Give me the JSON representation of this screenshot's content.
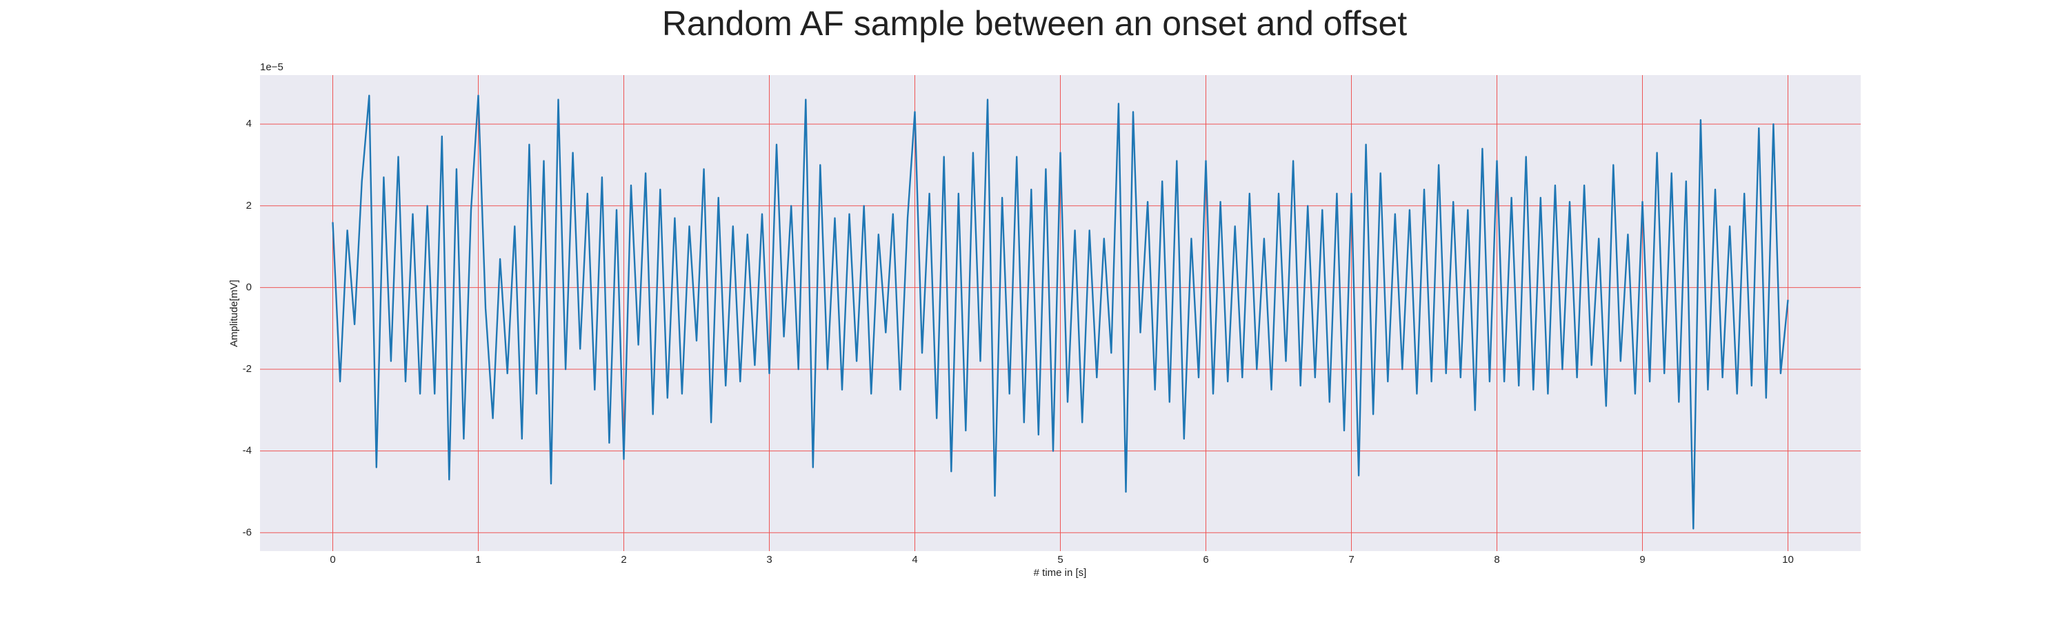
{
  "chart_data": {
    "type": "line",
    "title": "Random AF sample between an onset and offset",
    "xlabel": "# time in [s]",
    "ylabel": "Amplitude[mV]",
    "offset_text": "1e−5",
    "color": "#1f77b4",
    "background": "#eaeaf2",
    "grid": true,
    "grid_color": "#ee5555",
    "xlim": [
      -0.5,
      10.5
    ],
    "ylim": [
      -6.45,
      5.2
    ],
    "xticks": [
      0,
      1,
      2,
      3,
      4,
      5,
      6,
      7,
      8,
      9,
      10
    ],
    "yticks": [
      -6,
      -4,
      -2,
      0,
      2,
      4
    ],
    "x": [
      0,
      0.05,
      0.1,
      0.15,
      0.2,
      0.25,
      0.3,
      0.35,
      0.4,
      0.45,
      0.5,
      0.55,
      0.6,
      0.65,
      0.7,
      0.75,
      0.8,
      0.85,
      0.9,
      0.95,
      1,
      1.05,
      1.1,
      1.15,
      1.2,
      1.25,
      1.3,
      1.35,
      1.4,
      1.45,
      1.5,
      1.55,
      1.6,
      1.65,
      1.7,
      1.75,
      1.8,
      1.85,
      1.9,
      1.95,
      2,
      2.05,
      2.1,
      2.15,
      2.2,
      2.25,
      2.3,
      2.35,
      2.4,
      2.45,
      2.5,
      2.55,
      2.6,
      2.65,
      2.7,
      2.75,
      2.8,
      2.85,
      2.9,
      2.95,
      3,
      3.05,
      3.1,
      3.15,
      3.2,
      3.25,
      3.3,
      3.35,
      3.4,
      3.45,
      3.5,
      3.55,
      3.6,
      3.65,
      3.7,
      3.75,
      3.8,
      3.85,
      3.9,
      3.95,
      4,
      4.05,
      4.1,
      4.15,
      4.2,
      4.25,
      4.3,
      4.35,
      4.4,
      4.45,
      4.5,
      4.55,
      4.6,
      4.65,
      4.7,
      4.75,
      4.8,
      4.85,
      4.9,
      4.95,
      5,
      5.05,
      5.1,
      5.15,
      5.2,
      5.25,
      5.3,
      5.35,
      5.4,
      5.45,
      5.5,
      5.55,
      5.6,
      5.65,
      5.7,
      5.75,
      5.8,
      5.85,
      5.9,
      5.95,
      6,
      6.05,
      6.1,
      6.15,
      6.2,
      6.25,
      6.3,
      6.35,
      6.4,
      6.45,
      6.5,
      6.55,
      6.6,
      6.65,
      6.7,
      6.75,
      6.8,
      6.85,
      6.9,
      6.95,
      7,
      7.05,
      7.1,
      7.15,
      7.2,
      7.25,
      7.3,
      7.35,
      7.4,
      7.45,
      7.5,
      7.55,
      7.6,
      7.65,
      7.7,
      7.75,
      7.8,
      7.85,
      7.9,
      7.95,
      8,
      8.05,
      8.1,
      8.15,
      8.2,
      8.25,
      8.3,
      8.35,
      8.4,
      8.45,
      8.5,
      8.55,
      8.6,
      8.65,
      8.7,
      8.75,
      8.8,
      8.85,
      8.9,
      8.95,
      9,
      9.05,
      9.1,
      9.15,
      9.2,
      9.25,
      9.3,
      9.35,
      9.4,
      9.45,
      9.5,
      9.55,
      9.6,
      9.65,
      9.7,
      9.75,
      9.8,
      9.85,
      9.9,
      9.95,
      10
    ],
    "values": [
      1.6,
      -2.3,
      1.4,
      -0.9,
      2.6,
      4.7,
      -4.4,
      2.7,
      -1.8,
      3.2,
      -2.3,
      1.8,
      -2.6,
      2.0,
      -2.6,
      3.7,
      -4.7,
      2.9,
      -3.7,
      1.9,
      4.7,
      -0.5,
      -3.2,
      0.7,
      -2.1,
      1.5,
      -3.7,
      3.5,
      -2.6,
      3.1,
      -4.8,
      4.6,
      -2.0,
      3.3,
      -1.5,
      2.3,
      -2.5,
      2.7,
      -3.8,
      1.9,
      -4.2,
      2.5,
      -1.4,
      2.8,
      -3.1,
      2.4,
      -2.7,
      1.7,
      -2.6,
      1.5,
      -1.3,
      2.9,
      -3.3,
      2.2,
      -2.4,
      1.5,
      -2.3,
      1.3,
      -1.9,
      1.8,
      -2.1,
      3.5,
      -1.2,
      2.0,
      -2.0,
      4.6,
      -4.4,
      3.0,
      -2.0,
      1.7,
      -2.5,
      1.8,
      -1.8,
      2.0,
      -2.6,
      1.3,
      -1.1,
      1.8,
      -2.5,
      1.7,
      4.3,
      -1.6,
      2.3,
      -3.2,
      3.2,
      -4.5,
      2.3,
      -3.5,
      3.3,
      -1.8,
      4.6,
      -5.1,
      2.2,
      -2.6,
      3.2,
      -3.3,
      2.4,
      -3.6,
      2.9,
      -4.0,
      3.3,
      -2.8,
      1.4,
      -3.3,
      1.4,
      -2.2,
      1.2,
      -1.6,
      4.5,
      -5.0,
      4.3,
      -1.1,
      2.1,
      -2.5,
      2.6,
      -2.8,
      3.1,
      -3.7,
      1.2,
      -2.2,
      3.1,
      -2.6,
      2.1,
      -2.3,
      1.5,
      -2.2,
      2.3,
      -2.0,
      1.2,
      -2.5,
      2.3,
      -1.8,
      3.1,
      -2.4,
      2.0,
      -2.2,
      1.9,
      -2.8,
      2.3,
      -3.5,
      2.3,
      -4.6,
      3.5,
      -3.1,
      2.8,
      -2.3,
      1.8,
      -2.0,
      1.9,
      -2.6,
      2.4,
      -2.3,
      3.0,
      -2.1,
      2.1,
      -2.2,
      1.9,
      -3.0,
      3.4,
      -2.3,
      3.1,
      -2.3,
      2.2,
      -2.4,
      3.2,
      -2.5,
      2.2,
      -2.6,
      2.5,
      -2.0,
      2.1,
      -2.2,
      2.5,
      -1.9,
      1.2,
      -2.9,
      3.0,
      -1.8,
      1.3,
      -2.6,
      2.1,
      -2.3,
      3.3,
      -2.1,
      2.8,
      -2.8,
      2.6,
      -5.9,
      4.1,
      -2.5,
      2.4,
      -2.2,
      1.5,
      -2.6,
      2.3,
      -2.4,
      3.9,
      -2.7,
      4.0,
      -2.1,
      -0.3
    ]
  }
}
